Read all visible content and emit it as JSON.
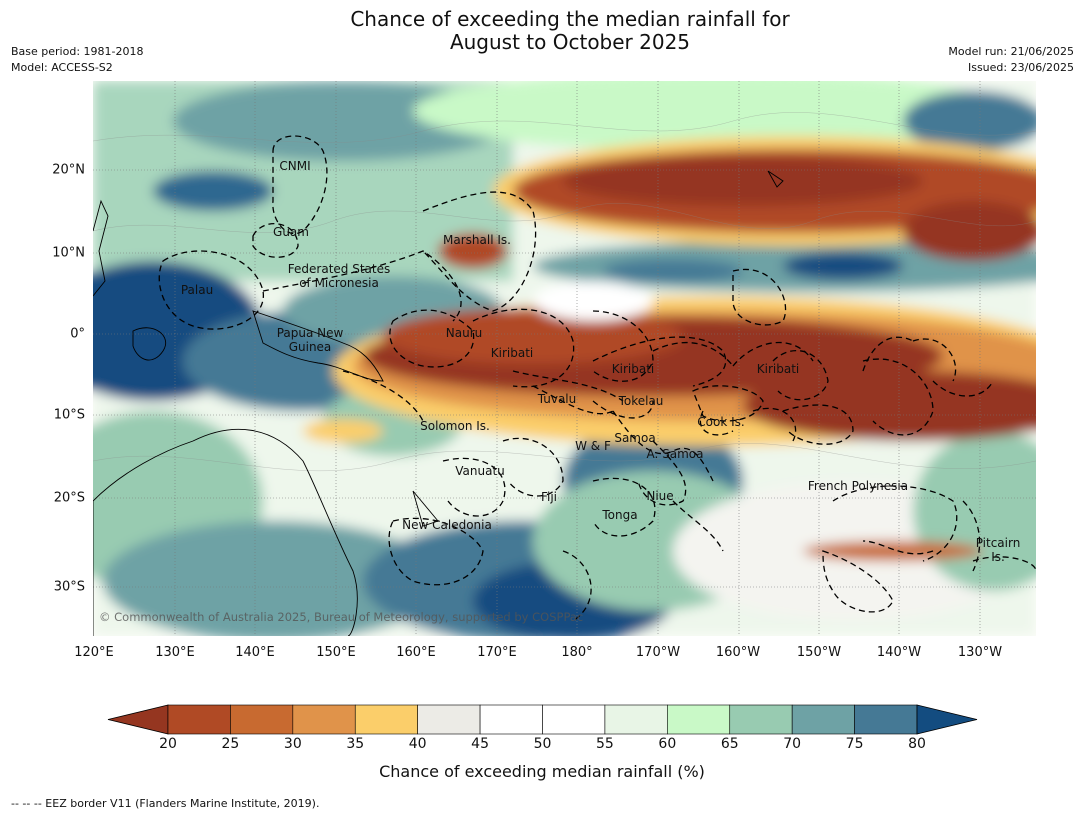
{
  "title": {
    "line1": "Chance of exceeding the median rainfall for",
    "line2": "August to October 2025"
  },
  "meta": {
    "base_period": "Base period: 1981-2018",
    "model": "Model: ACCESS-S2",
    "model_run": "Model run: 21/06/2025",
    "issued": "Issued: 23/06/2025"
  },
  "map": {
    "copyright": "© Commonwealth of Australia 2025, Bureau of Meteorology, supported by COSPPac",
    "lat_labels": [
      "20°N",
      "10°N",
      "0°",
      "10°S",
      "20°S",
      "30°S"
    ],
    "lon_labels": [
      "120°E",
      "130°E",
      "140°E",
      "150°E",
      "160°E",
      "170°E",
      "180°",
      "170°W",
      "160°W",
      "150°W",
      "140°W",
      "130°W"
    ],
    "regions": {
      "cnmi": "CNMI",
      "guam": "Guam",
      "marshall": "Marshall Is.",
      "fsm1": "Federated States",
      "fsm2": "of Micronesia",
      "palau": "Palau",
      "png1": "Papua New",
      "png2": "Guinea",
      "nauru": "Nauru",
      "kiribati_w": "Kiribati",
      "kiribati_c": "Kiribati",
      "kiribati_e": "Kiribati",
      "tuvalu": "Tuvalu",
      "tokelau": "Tokelau",
      "cook": "Cook Is.",
      "solomon": "Solomon Is.",
      "wf": "W & F",
      "samoa": "Samoa",
      "asamoa": "A. Samoa",
      "vanuatu": "Vanuatu",
      "fiji": "Fiji",
      "niue": "Niue",
      "tonga": "Tonga",
      "new_caledonia": "New Caledonia",
      "french_polynesia": "French Polynesia",
      "pitcairn1": "Pitcairn",
      "pitcairn2": "Is."
    }
  },
  "colorbar": {
    "ticks": [
      "20",
      "25",
      "30",
      "35",
      "40",
      "45",
      "50",
      "55",
      "60",
      "65",
      "70",
      "75",
      "80"
    ],
    "colors": [
      "#953620",
      "#b04a25",
      "#c86a30",
      "#e0934a",
      "#fbce6a",
      "#ecebe6",
      "#ffffff",
      "#ffffff",
      "#e8f5e6",
      "#c9f9c7",
      "#98cbb1",
      "#6ea2a5",
      "#457995",
      "#134c80"
    ],
    "label": "Chance of exceeding median rainfall (%)"
  },
  "footnote": "--  --  -- EEZ border V11 (Flanders Marine Institute, 2019)."
}
